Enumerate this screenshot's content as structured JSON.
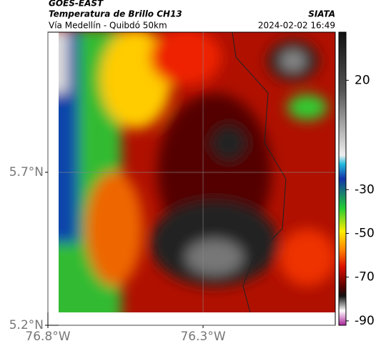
{
  "header": {
    "title": "GOES-EAST",
    "subtitle": "Temperatura de Brillo CH13",
    "location": "Vía Medellín - Quibdó 50km",
    "source": "SIATA",
    "timestamp": "2024-02-02 16:49"
  },
  "map": {
    "xlim": [
      -76.8,
      -75.874
    ],
    "ylim": [
      5.2,
      6.158
    ],
    "xticks": [
      {
        "value": -76.8,
        "label": "76.8°W"
      },
      {
        "value": -76.3,
        "label": "76.3°W"
      }
    ],
    "yticks": [
      {
        "value": 5.7,
        "label": "5.7°N"
      },
      {
        "value": 5.2,
        "label": "5.2°N"
      }
    ],
    "grid": true
  },
  "colorbar": {
    "lim": [
      -92,
      42
    ],
    "ticks": [
      20,
      -30,
      -50,
      -70,
      -90
    ]
  }
}
